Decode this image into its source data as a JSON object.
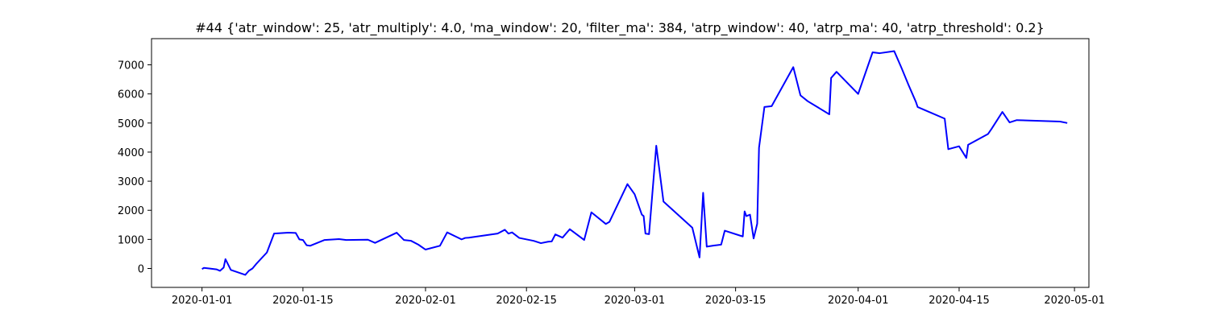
{
  "chart_data": {
    "type": "line",
    "title": "#44 {'atr_window': 25, 'atr_multiply': 4.0, 'ma_window': 20, 'filter_ma': 384, 'atrp_window': 40, 'atrp_ma': 40, 'atrp_threshold': 0.2}",
    "xlabel": "",
    "ylabel": "",
    "grid": false,
    "line_color": "#0000ff",
    "x_tick_labels": [
      "2020-01-01",
      "2020-01-15",
      "2020-02-01",
      "2020-02-15",
      "2020-03-01",
      "2020-03-15",
      "2020-04-01",
      "2020-04-15",
      "2020-05-01"
    ],
    "y_tick_labels": [
      "0",
      "1000",
      "2000",
      "3000",
      "4000",
      "5000",
      "6000",
      "7000"
    ],
    "y_ticks": [
      0,
      1000,
      2000,
      3000,
      4000,
      5000,
      6000,
      7000
    ],
    "xlim": [
      "2019-12-25",
      "2020-05-03"
    ],
    "ylim": [
      -650,
      7900
    ],
    "series": [
      {
        "x": [
          "2020-01-01",
          "2020-01-01T06:00",
          "2020-01-02",
          "2020-01-03",
          "2020-01-03T12:00",
          "2020-01-04",
          "2020-01-04T06:00",
          "2020-01-05",
          "2020-01-07",
          "2020-01-07T12:00",
          "2020-01-08",
          "2020-01-08T12:00",
          "2020-01-10",
          "2020-01-11",
          "2020-01-13",
          "2020-01-14",
          "2020-01-14T12:00",
          "2020-01-15",
          "2020-01-15T12:00",
          "2020-01-16",
          "2020-01-18",
          "2020-01-20",
          "2020-01-21",
          "2020-01-24",
          "2020-01-25",
          "2020-01-28",
          "2020-01-29",
          "2020-01-30",
          "2020-01-31",
          "2020-02-01",
          "2020-02-03",
          "2020-02-04",
          "2020-02-06",
          "2020-02-06T12:00",
          "2020-02-07",
          "2020-02-11",
          "2020-02-12",
          "2020-02-12T12:00",
          "2020-02-13",
          "2020-02-14",
          "2020-02-16",
          "2020-02-17",
          "2020-02-18",
          "2020-02-18T12:00",
          "2020-02-19",
          "2020-02-20",
          "2020-02-21",
          "2020-02-23",
          "2020-02-24",
          "2020-02-26",
          "2020-02-26T12:00",
          "2020-02-29",
          "2020-03-01",
          "2020-03-02",
          "2020-03-02T06:00",
          "2020-03-02T12:00",
          "2020-03-03",
          "2020-03-04",
          "2020-03-05",
          "2020-03-09",
          "2020-03-10",
          "2020-03-10T12:00",
          "2020-03-11",
          "2020-03-12",
          "2020-03-13",
          "2020-03-13T12:00",
          "2020-03-16",
          "2020-03-16T06:00",
          "2020-03-16T12:00",
          "2020-03-17",
          "2020-03-17T12:00",
          "2020-03-18",
          "2020-03-18T06:00",
          "2020-03-19",
          "2020-03-20",
          "2020-03-23",
          "2020-03-24",
          "2020-03-25",
          "2020-03-28",
          "2020-03-28T06:00",
          "2020-03-29",
          "2020-04-01",
          "2020-04-03",
          "2020-04-04",
          "2020-04-06",
          "2020-04-07",
          "2020-04-08",
          "2020-04-09",
          "2020-04-09T06:00",
          "2020-04-13",
          "2020-04-13T12:00",
          "2020-04-15",
          "2020-04-16",
          "2020-04-16T06:00",
          "2020-04-19",
          "2020-04-19T12:00",
          "2020-04-21",
          "2020-04-22",
          "2020-04-23",
          "2020-04-29",
          "2020-04-30"
        ],
        "y": [
          -20,
          20,
          0,
          -30,
          -80,
          30,
          320,
          -50,
          -220,
          -80,
          0,
          150,
          550,
          1200,
          1230,
          1220,
          1000,
          980,
          800,
          780,
          980,
          1010,
          980,
          990,
          880,
          1230,
          980,
          950,
          820,
          650,
          780,
          1240,
          1000,
          1050,
          1060,
          1200,
          1330,
          1200,
          1240,
          1050,
          950,
          870,
          920,
          930,
          1170,
          1060,
          1350,
          980,
          1930,
          1530,
          1600,
          2900,
          2550,
          1850,
          1800,
          1200,
          1180,
          4220,
          2300,
          1400,
          380,
          2600,
          750,
          790,
          820,
          1300,
          1100,
          1960,
          1800,
          1850,
          1030,
          1540,
          4150,
          5550,
          5580,
          6920,
          5950,
          5750,
          5300,
          6550,
          6760,
          6000,
          7430,
          7400,
          7470,
          6900,
          6300,
          5730,
          5550,
          5150,
          4100,
          4200,
          3800,
          4250,
          4620,
          4800,
          5380,
          5020,
          5100,
          5050,
          5000
        ]
      }
    ]
  }
}
